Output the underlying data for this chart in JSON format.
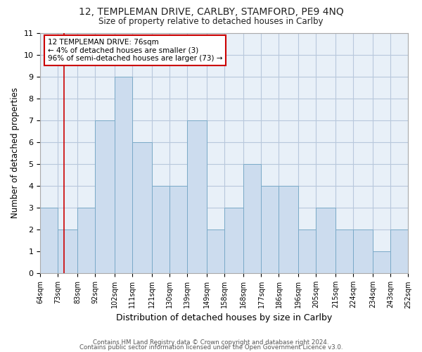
{
  "title": "12, TEMPLEMAN DRIVE, CARLBY, STAMFORD, PE9 4NQ",
  "subtitle": "Size of property relative to detached houses in Carlby",
  "xlabel": "Distribution of detached houses by size in Carlby",
  "ylabel": "Number of detached properties",
  "footer1": "Contains HM Land Registry data © Crown copyright and database right 2024.",
  "footer2": "Contains public sector information licensed under the Open Government Licence v3.0.",
  "bin_edges": [
    64,
    73,
    83,
    92,
    102,
    111,
    121,
    130,
    139,
    149,
    158,
    168,
    177,
    186,
    196,
    205,
    215,
    224,
    234,
    243,
    252
  ],
  "bar_heights": [
    3,
    2,
    3,
    7,
    9,
    6,
    4,
    4,
    7,
    2,
    3,
    5,
    4,
    4,
    2,
    3,
    2,
    2,
    1,
    2
  ],
  "bar_color": "#ccdcee",
  "bar_edge_color": "#7aaac8",
  "grid_color": "#b8c8dc",
  "property_size": 76,
  "annotation_line1": "12 TEMPLEMAN DRIVE: 76sqm",
  "annotation_line2": "← 4% of detached houses are smaller (3)",
  "annotation_line3": "96% of semi-detached houses are larger (73) →",
  "annotation_box_facecolor": "#ffffff",
  "annotation_box_edgecolor": "#cc0000",
  "vline_color": "#cc0000",
  "ylim_max": 11,
  "yticks": [
    0,
    1,
    2,
    3,
    4,
    5,
    6,
    7,
    8,
    9,
    10,
    11
  ],
  "xtick_labels": [
    "64sqm",
    "73sqm",
    "83sqm",
    "92sqm",
    "102sqm",
    "111sqm",
    "121sqm",
    "130sqm",
    "139sqm",
    "149sqm",
    "158sqm",
    "168sqm",
    "177sqm",
    "186sqm",
    "196sqm",
    "205sqm",
    "215sqm",
    "224sqm",
    "234sqm",
    "243sqm",
    "252sqm"
  ],
  "fig_bg_color": "#ffffff",
  "ax_bg_color": "#e8f0f8"
}
